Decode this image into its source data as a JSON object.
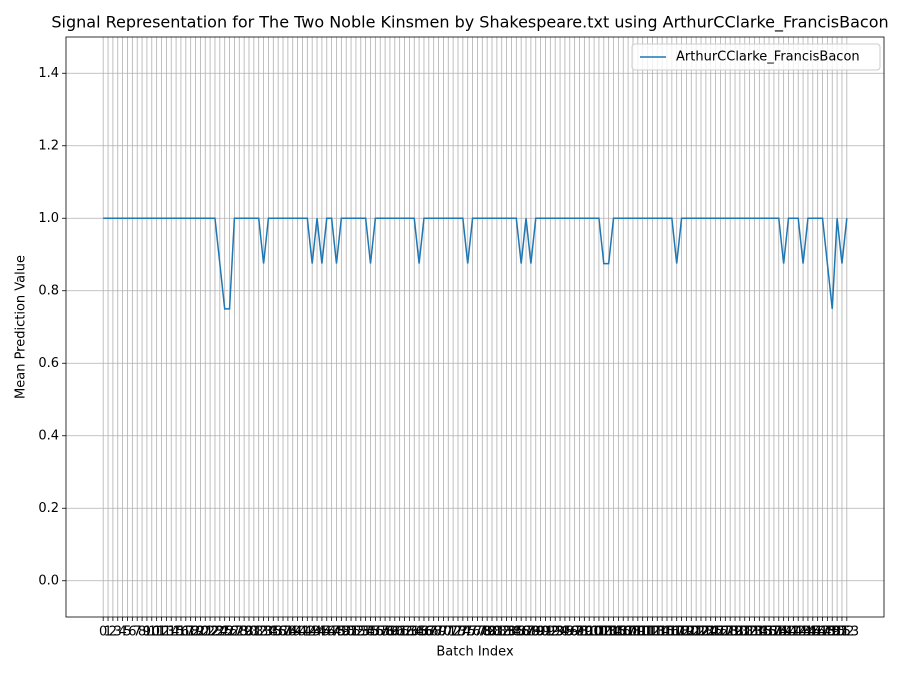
{
  "chart_data": {
    "type": "line",
    "title": "Signal Representation for The Two Noble Kinsmen by Shakespeare.txt using ArthurCClarke_FrancisBacon",
    "xlabel": "Batch Index",
    "ylabel": "Mean Prediction Value",
    "x": [
      0,
      1,
      2,
      3,
      4,
      5,
      6,
      7,
      8,
      9,
      10,
      11,
      12,
      13,
      14,
      15,
      16,
      17,
      18,
      19,
      20,
      21,
      22,
      23,
      24,
      25,
      26,
      27,
      28,
      29,
      30,
      31,
      32,
      33,
      34,
      35,
      36,
      37,
      38,
      39,
      40,
      41,
      42,
      43,
      44,
      45,
      46,
      47,
      48,
      49,
      50,
      51,
      52,
      53,
      54,
      55,
      56,
      57,
      58,
      59,
      60,
      61,
      62,
      63,
      64,
      65,
      66,
      67,
      68,
      69,
      70,
      71,
      72,
      73,
      74,
      75,
      76,
      77,
      78,
      79,
      80,
      81,
      82,
      83,
      84,
      85,
      86,
      87,
      88,
      89,
      90,
      91,
      92,
      93,
      94,
      95,
      96,
      97,
      98,
      99,
      100,
      101,
      102,
      103,
      104,
      105,
      106,
      107,
      108,
      109,
      110,
      111,
      112,
      113,
      114,
      115,
      116,
      117,
      118,
      119,
      120,
      121,
      122,
      123,
      124,
      125,
      126,
      127,
      128,
      129,
      130,
      131,
      132,
      133,
      134,
      135,
      136,
      137,
      138,
      139,
      140,
      141,
      142,
      143,
      144,
      145,
      146,
      147,
      148,
      149,
      150,
      151,
      152,
      153
    ],
    "series": [
      {
        "name": "ArthurCClarke_FrancisBacon",
        "color": "#1f77b4",
        "values": [
          1,
          1,
          1,
          1,
          1,
          1,
          1,
          1,
          1,
          1,
          1,
          1,
          1,
          1,
          1,
          1,
          1,
          1,
          1,
          1,
          1,
          1,
          1,
          1,
          0.875,
          0.75,
          0.75,
          1,
          1,
          1,
          1,
          1,
          1,
          0.875,
          1,
          1,
          1,
          1,
          1,
          1,
          1,
          1,
          1,
          0.875,
          1,
          0.875,
          1,
          1,
          0.875,
          1,
          1,
          1,
          1,
          1,
          1,
          0.875,
          1,
          1,
          1,
          1,
          1,
          1,
          1,
          1,
          1,
          0.875,
          1,
          1,
          1,
          1,
          1,
          1,
          1,
          1,
          1,
          0.875,
          1,
          1,
          1,
          1,
          1,
          1,
          1,
          1,
          1,
          1,
          0.875,
          1,
          0.875,
          1,
          1,
          1,
          1,
          1,
          1,
          1,
          1,
          1,
          1,
          1,
          1,
          1,
          1,
          0.875,
          0.875,
          1,
          1,
          1,
          1,
          1,
          1,
          1,
          1,
          1,
          1,
          1,
          1,
          1,
          0.875,
          1,
          1,
          1,
          1,
          1,
          1,
          1,
          1,
          1,
          1,
          1,
          1,
          1,
          1,
          1,
          1,
          1,
          1,
          1,
          1,
          1,
          0.875,
          1,
          1,
          1,
          0.875,
          1,
          1,
          1,
          1,
          0.875,
          0.75,
          1,
          0.875,
          1
        ]
      }
    ],
    "xlim": [
      -7.65,
      160.65
    ],
    "xticks": [
      0,
      1,
      2,
      3,
      4,
      5,
      6,
      7,
      8,
      9,
      10,
      11,
      12,
      13,
      14,
      15,
      16,
      17,
      18,
      19,
      20,
      21,
      22,
      23,
      24,
      25,
      26,
      27,
      28,
      29,
      30,
      31,
      32,
      33,
      34,
      35,
      36,
      37,
      38,
      39,
      40,
      41,
      42,
      43,
      44,
      45,
      46,
      47,
      48,
      49,
      50,
      51,
      52,
      53,
      54,
      55,
      56,
      57,
      58,
      59,
      60,
      61,
      62,
      63,
      64,
      65,
      66,
      67,
      68,
      69,
      70,
      71,
      72,
      73,
      74,
      75,
      76,
      77,
      78,
      79,
      80,
      81,
      82,
      83,
      84,
      85,
      86,
      87,
      88,
      89,
      90,
      91,
      92,
      93,
      94,
      95,
      96,
      97,
      98,
      99,
      100,
      101,
      102,
      103,
      104,
      105,
      106,
      107,
      108,
      109,
      110,
      111,
      112,
      113,
      114,
      115,
      116,
      117,
      118,
      119,
      120,
      121,
      122,
      123,
      124,
      125,
      126,
      127,
      128,
      129,
      130,
      131,
      132,
      133,
      134,
      135,
      136,
      137,
      138,
      139,
      140,
      141,
      142,
      143,
      144,
      145,
      146,
      147,
      148,
      149,
      150,
      151,
      152,
      153
    ],
    "ylim": [
      -0.1,
      1.5
    ],
    "yticks": [
      {
        "value": 0,
        "label": "0.0"
      },
      {
        "value": 0.2,
        "label": "0.2"
      },
      {
        "value": 0.4,
        "label": "0.4"
      },
      {
        "value": 0.6,
        "label": "0.6"
      },
      {
        "value": 0.8,
        "label": "0.8"
      },
      {
        "value": 1,
        "label": "1.0"
      },
      {
        "value": 1.2,
        "label": "1.2"
      },
      {
        "value": 1.4,
        "label": "1.4"
      }
    ],
    "grid": true,
    "legend": "upper right"
  }
}
